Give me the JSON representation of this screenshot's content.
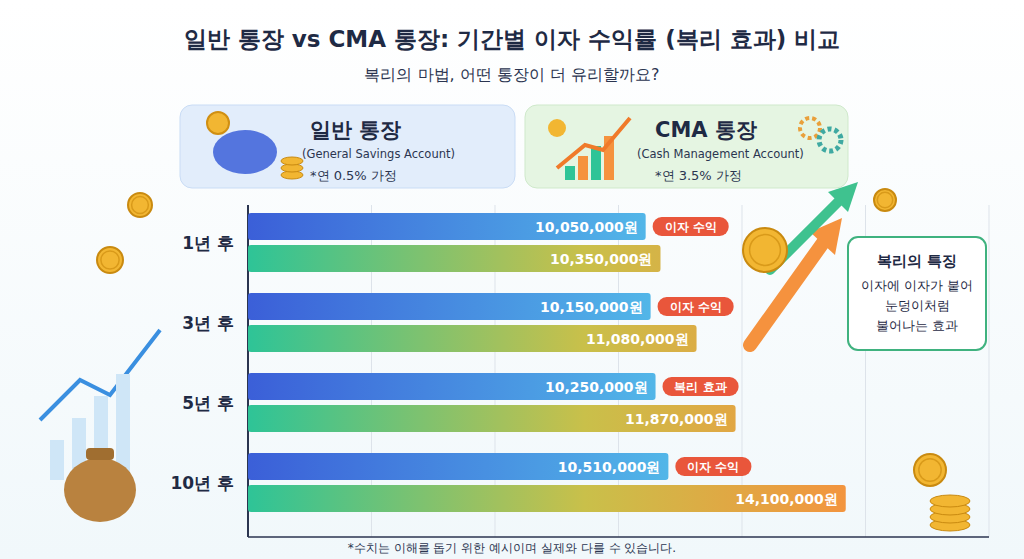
{
  "chart_data": {
    "type": "bar",
    "orientation": "horizontal",
    "title": "일반 통장 vs CMA 통장: 기간별 이자 수익률 (복리 효과) 비교",
    "subtitle": "복리의 마법, 어떤 통장이 더 유리할까요?",
    "categories": [
      "1년 후",
      "3년 후",
      "5년 후",
      "10년 후"
    ],
    "series": [
      {
        "name": "일반 통장",
        "color": "#3b5fd8",
        "values": [
          10050000,
          10150000,
          10250000,
          10510000
        ],
        "value_labels": [
          "10,050,000원",
          "10,150,000원",
          "10,250,000원",
          "10,510,000원"
        ]
      },
      {
        "name": "CMA 통장",
        "color": "#2ec497",
        "values": [
          10350000,
          11080000,
          11870000,
          14100000
        ],
        "value_labels": [
          "10,350,000원",
          "11,080,000원",
          "11,870,000원",
          "14,100,000원"
        ]
      }
    ],
    "xlim": [
      2000000,
      17000000
    ],
    "xticks": [
      2000000,
      4500000,
      7000000,
      9500000,
      12000000,
      14500000,
      17000000
    ],
    "grid": true,
    "tick_labels": false,
    "data_labels": true,
    "legend": "top",
    "annotations": {
      "series_subtitles": [
        "(General Savings Account)",
        "(Cash Management Account)"
      ],
      "series_notes": [
        "*연 0.5% 가정",
        "*연 3.5% 가정"
      ],
      "tags": [
        "이자 수익",
        "이자 수익",
        "복리 효과",
        "이자 수익"
      ],
      "callout_title": "복리의 특징",
      "callout_lines": [
        "이자에 이자가 붙어",
        "눈덩이처럼",
        "불어나는 효과"
      ],
      "footnote": "*수치는 이해를 돕기 위한 예시이며 실제와 다를 수 있습니다."
    }
  }
}
